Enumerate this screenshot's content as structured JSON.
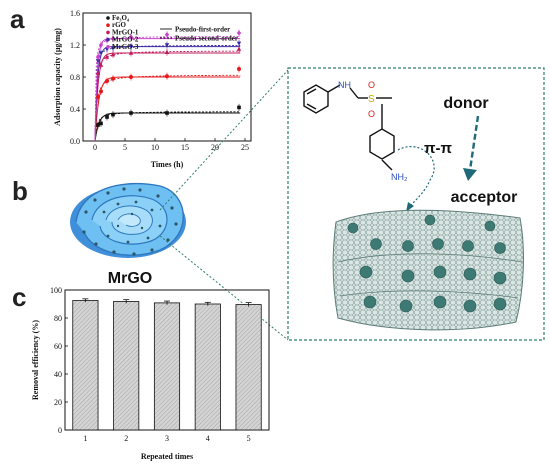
{
  "panels": {
    "a": "a",
    "b": "b",
    "c": "c"
  },
  "panel_b": {
    "material_label": "MrGO",
    "donor_label": "donor",
    "acceptor_label": "acceptor",
    "interaction_label": "π-π",
    "molecule_label": "NH₂",
    "molecule_nh": "NH",
    "molecule_s": "S",
    "molecule_o": "O",
    "colors": {
      "graphene": "#4aa3e8",
      "nanoparticle": "#3e7a74",
      "dashed_box": "#2e7d6b",
      "arrow": "#1f6a78"
    }
  },
  "chart_data": [
    {
      "type": "scatter",
      "title": "",
      "xlabel": "Times (h)",
      "ylabel": "Adsorption capacity (μg/mg)",
      "xlim": [
        -2,
        26
      ],
      "ylim": [
        0.0,
        1.6
      ],
      "xticks": [
        "0",
        "5",
        "10",
        "15",
        "20",
        "25"
      ],
      "yticks": [
        "0.0",
        "0.4",
        "0.8",
        "1.2",
        "1.6"
      ],
      "fit_legend": [
        "Pseudo-first-order",
        "Pseudo-second-order"
      ],
      "series": [
        {
          "name": "Fe₃O₄",
          "color": "#111111",
          "marker": "square",
          "x": [
            0.5,
            1,
            2,
            3,
            6,
            12,
            24
          ],
          "y": [
            0.2,
            0.22,
            0.3,
            0.33,
            0.35,
            0.35,
            0.42
          ],
          "qe1": 0.35,
          "k1": 1.5,
          "qe2": 0.37,
          "k2": 9.0
        },
        {
          "name": "rGO",
          "color": "#e41a1c",
          "marker": "circle",
          "x": [
            0.5,
            1,
            2,
            3,
            6,
            12,
            24
          ],
          "y": [
            0.55,
            0.62,
            0.75,
            0.78,
            0.8,
            0.81,
            0.9
          ],
          "qe1": 0.8,
          "k1": 1.6,
          "qe2": 0.83,
          "k2": 5.0
        },
        {
          "name": "MrGO-1",
          "color": "#c2185b",
          "marker": "triangle",
          "x": [
            0.5,
            1,
            2,
            3,
            6,
            12,
            24
          ],
          "y": [
            0.85,
            0.95,
            1.05,
            1.08,
            1.1,
            1.11,
            1.15
          ],
          "qe1": 1.1,
          "k1": 2.0,
          "qe2": 1.13,
          "k2": 6.0
        },
        {
          "name": "MrGO-2",
          "color": "#3b2aa6",
          "marker": "triangle-down",
          "x": [
            0.5,
            1,
            2,
            3,
            6,
            12,
            24
          ],
          "y": [
            1.0,
            1.1,
            1.15,
            1.16,
            1.18,
            1.2,
            1.22
          ],
          "qe1": 1.18,
          "k1": 2.4,
          "qe2": 1.2,
          "k2": 8.0
        },
        {
          "name": "MrGO-3",
          "color": "#cc44cc",
          "marker": "diamond",
          "x": [
            0.5,
            1,
            2,
            3,
            6,
            12,
            24
          ],
          "y": [
            1.05,
            1.2,
            1.26,
            1.28,
            1.3,
            1.33,
            1.35
          ],
          "qe1": 1.28,
          "k1": 2.8,
          "qe2": 1.31,
          "k2": 9.0
        }
      ]
    },
    {
      "type": "bar",
      "title": "",
      "xlabel": "Repeated times",
      "ylabel": "Removal efficiency (%)",
      "ylim": [
        0,
        100
      ],
      "yticks": [
        "0",
        "20",
        "40",
        "60",
        "80",
        "100"
      ],
      "categories": [
        "1",
        "2",
        "3",
        "4",
        "5"
      ],
      "values": [
        92.5,
        91.8,
        90.8,
        90.0,
        89.6
      ],
      "errors": [
        1.2,
        1.3,
        1.3,
        1.2,
        1.4
      ],
      "bar_fill": "#cfcfcf"
    }
  ]
}
